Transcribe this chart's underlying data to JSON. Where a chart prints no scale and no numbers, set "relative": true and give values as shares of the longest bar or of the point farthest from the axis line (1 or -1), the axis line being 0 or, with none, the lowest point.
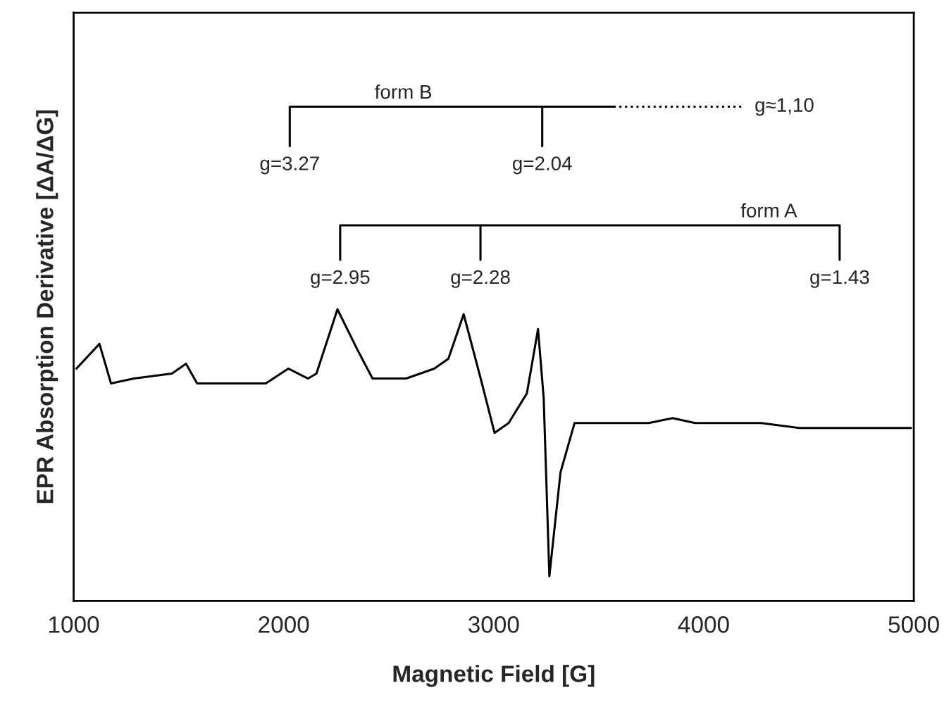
{
  "chart_data": {
    "type": "line",
    "relative": true,
    "xlabel": "Magnetic Field [G]",
    "ylabel": "EPR Absorption Derivative [ΔA/ΔG]",
    "xlim": [
      1000,
      5000
    ],
    "xticks": [
      1000,
      2000,
      3000,
      4000,
      5000
    ],
    "tick_labels": "x",
    "grid": false,
    "legend": false,
    "series": [
      {
        "color": "#000000",
        "x": [
          1013,
          1123,
          1178,
          1287,
          1468,
          1535,
          1588,
          1735,
          1915,
          2022,
          2116,
          2156,
          2256,
          2349,
          2423,
          2583,
          2717,
          2784,
          2857,
          2938,
          3004,
          3071,
          3158,
          3211,
          3238,
          3265,
          3318,
          3385,
          3451,
          3538,
          3738,
          3852,
          3959,
          4073,
          4273,
          4454,
          4627,
          4987
        ],
        "values": [
          0.47,
          0.52,
          0.44,
          0.45,
          0.46,
          0.48,
          0.44,
          0.44,
          0.44,
          0.47,
          0.45,
          0.46,
          0.59,
          0.51,
          0.45,
          0.45,
          0.47,
          0.49,
          0.58,
          0.45,
          0.34,
          0.36,
          0.42,
          0.55,
          0.41,
          0.05,
          0.26,
          0.36,
          0.36,
          0.36,
          0.36,
          0.37,
          0.36,
          0.36,
          0.36,
          0.35,
          0.35,
          0.35
        ]
      },
      {
        "color": "#000000",
        "x": [
          2029,
          2029,
          3571
        ],
        "values": [
          0.92,
          1.0,
          1.0
        ]
      },
      {
        "color": "#000000",
        "x": [
          3231,
          3231
        ],
        "values": [
          1.0,
          0.92
        ]
      },
      {
        "color": "#000000",
        "line_style": "dotted",
        "x": [
          3571,
          4186
        ],
        "values": [
          1.0,
          1.0
        ]
      },
      {
        "color": "#000000",
        "x": [
          2269,
          2269,
          4647,
          4647
        ],
        "values": [
          0.69,
          0.76,
          0.76,
          0.69
        ]
      },
      {
        "color": "#000000",
        "x": [
          2937,
          2937
        ],
        "values": [
          0.76,
          0.69
        ]
      }
    ],
    "annotations": [
      {
        "text": "form B",
        "x": 2570,
        "y": 1.0
      },
      {
        "text": "g=3.27",
        "x": 2029,
        "y": 0.92
      },
      {
        "text": "g=2.04",
        "x": 3231,
        "y": 0.92
      },
      {
        "text": "g≈1,10",
        "x": 4186,
        "y": 1.0
      },
      {
        "text": "form A",
        "x": 4310,
        "y": 0.76
      },
      {
        "text": "g=2.95",
        "x": 2269,
        "y": 0.69
      },
      {
        "text": "g=2.28",
        "x": 2937,
        "y": 0.69
      },
      {
        "text": "g=1.43",
        "x": 4647,
        "y": 0.69
      }
    ]
  }
}
